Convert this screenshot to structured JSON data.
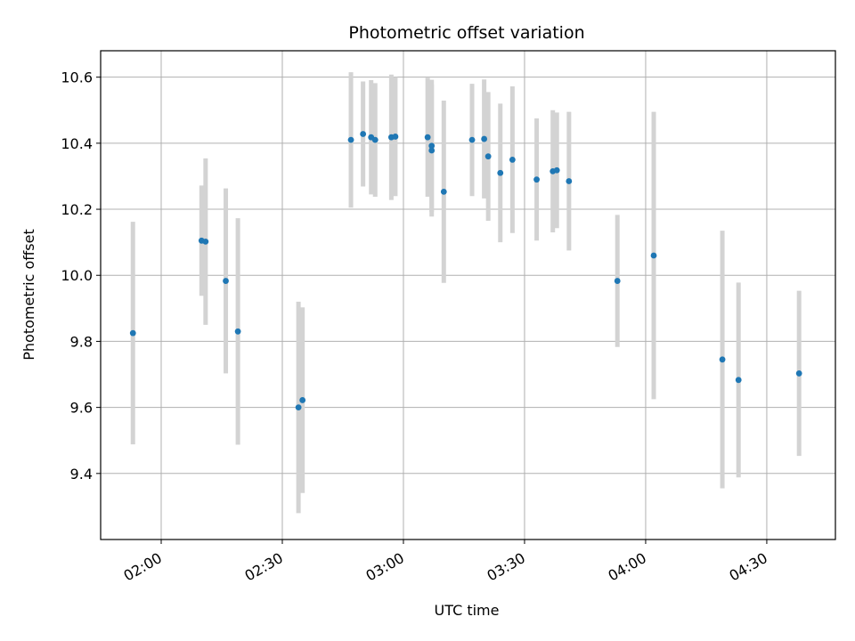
{
  "chart_data": {
    "type": "scatter",
    "title": "Photometric offset variation",
    "xlabel": "UTC time",
    "ylabel": "Photometric offset",
    "x_unit": "time of day (HH:MM, UTC)",
    "xlim": [
      "01:45",
      "04:47"
    ],
    "ylim": [
      9.2,
      10.68
    ],
    "x_ticks": [
      "02:00",
      "02:30",
      "03:00",
      "03:30",
      "04:00",
      "04:30"
    ],
    "y_ticks": [
      "9.4",
      "9.6",
      "9.8",
      "10.0",
      "10.2",
      "10.4",
      "10.6"
    ],
    "grid": true,
    "colors": {
      "point": "#1f77b4",
      "errorbar": "#d3d3d3",
      "grid": "#b0b0b0"
    },
    "points": [
      {
        "x": "01:53",
        "y": 9.825,
        "yerr": 0.337
      },
      {
        "x": "02:10",
        "y": 10.105,
        "yerr": 0.167
      },
      {
        "x": "02:11",
        "y": 10.102,
        "yerr": 0.252
      },
      {
        "x": "02:16",
        "y": 9.983,
        "yerr": 0.28
      },
      {
        "x": "02:19",
        "y": 9.83,
        "yerr": 0.343
      },
      {
        "x": "02:34",
        "y": 9.6,
        "yerr": 0.32
      },
      {
        "x": "02:35",
        "y": 9.622,
        "yerr": 0.281
      },
      {
        "x": "02:47",
        "y": 10.41,
        "yerr": 0.205
      },
      {
        "x": "02:50",
        "y": 10.428,
        "yerr": 0.159
      },
      {
        "x": "02:52",
        "y": 10.418,
        "yerr": 0.173
      },
      {
        "x": "02:53",
        "y": 10.41,
        "yerr": 0.172
      },
      {
        "x": "02:57",
        "y": 10.418,
        "yerr": 0.19
      },
      {
        "x": "02:58",
        "y": 10.42,
        "yerr": 0.18
      },
      {
        "x": "03:06",
        "y": 10.418,
        "yerr": 0.18
      },
      {
        "x": "03:07",
        "y": 10.392,
        "yerr": 0.2
      },
      {
        "x": "03:07",
        "y": 10.378,
        "yerr": 0.2
      },
      {
        "x": "03:10",
        "y": 10.253,
        "yerr": 0.276
      },
      {
        "x": "03:17",
        "y": 10.41,
        "yerr": 0.17
      },
      {
        "x": "03:20",
        "y": 10.413,
        "yerr": 0.18
      },
      {
        "x": "03:21",
        "y": 10.36,
        "yerr": 0.195
      },
      {
        "x": "03:24",
        "y": 10.31,
        "yerr": 0.21
      },
      {
        "x": "03:27",
        "y": 10.35,
        "yerr": 0.222
      },
      {
        "x": "03:33",
        "y": 10.29,
        "yerr": 0.185
      },
      {
        "x": "03:37",
        "y": 10.315,
        "yerr": 0.185
      },
      {
        "x": "03:38",
        "y": 10.318,
        "yerr": 0.175
      },
      {
        "x": "03:41",
        "y": 10.285,
        "yerr": 0.21
      },
      {
        "x": "03:53",
        "y": 9.983,
        "yerr": 0.2
      },
      {
        "x": "04:02",
        "y": 10.06,
        "yerr": 0.435
      },
      {
        "x": "04:19",
        "y": 9.745,
        "yerr": 0.39
      },
      {
        "x": "04:23",
        "y": 9.683,
        "yerr": 0.295
      },
      {
        "x": "04:38",
        "y": 9.703,
        "yerr": 0.25
      }
    ]
  }
}
